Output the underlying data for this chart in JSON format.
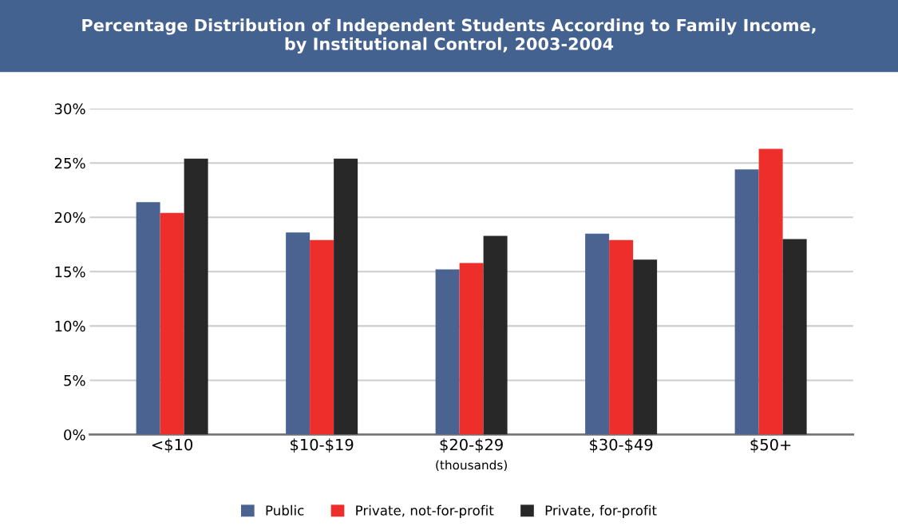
{
  "chart_data": {
    "type": "bar",
    "title": "Percentage Distribution of Independent Students According to Family Income,\nby Institutional Control, 2003-2004",
    "categories": [
      "<$10",
      "$10-$19",
      "$20-$29",
      "$30-$49",
      "$50+"
    ],
    "xlabel": "(thousands)",
    "series": [
      {
        "name": "Public",
        "color": "#4a6391",
        "values": [
          21.4,
          18.6,
          15.2,
          18.5,
          24.4
        ]
      },
      {
        "name": "Private, not-for-profit",
        "color": "#ee2e2b",
        "values": [
          20.4,
          17.9,
          15.8,
          17.9,
          26.3
        ]
      },
      {
        "name": "Private, for-profit",
        "color": "#282828",
        "values": [
          25.4,
          25.4,
          18.3,
          16.1,
          18.0
        ]
      }
    ],
    "ylim": [
      0,
      30
    ],
    "yticks": [
      {
        "value": 0,
        "label": "0%"
      },
      {
        "value": 5,
        "label": "5%"
      },
      {
        "value": 10,
        "label": "10%"
      },
      {
        "value": 15,
        "label": "15%"
      },
      {
        "value": 20,
        "label": "20%"
      },
      {
        "value": 25,
        "label": "25%"
      },
      {
        "value": 30,
        "label": "30%"
      }
    ],
    "grid": "y",
    "legend": "bottom"
  }
}
